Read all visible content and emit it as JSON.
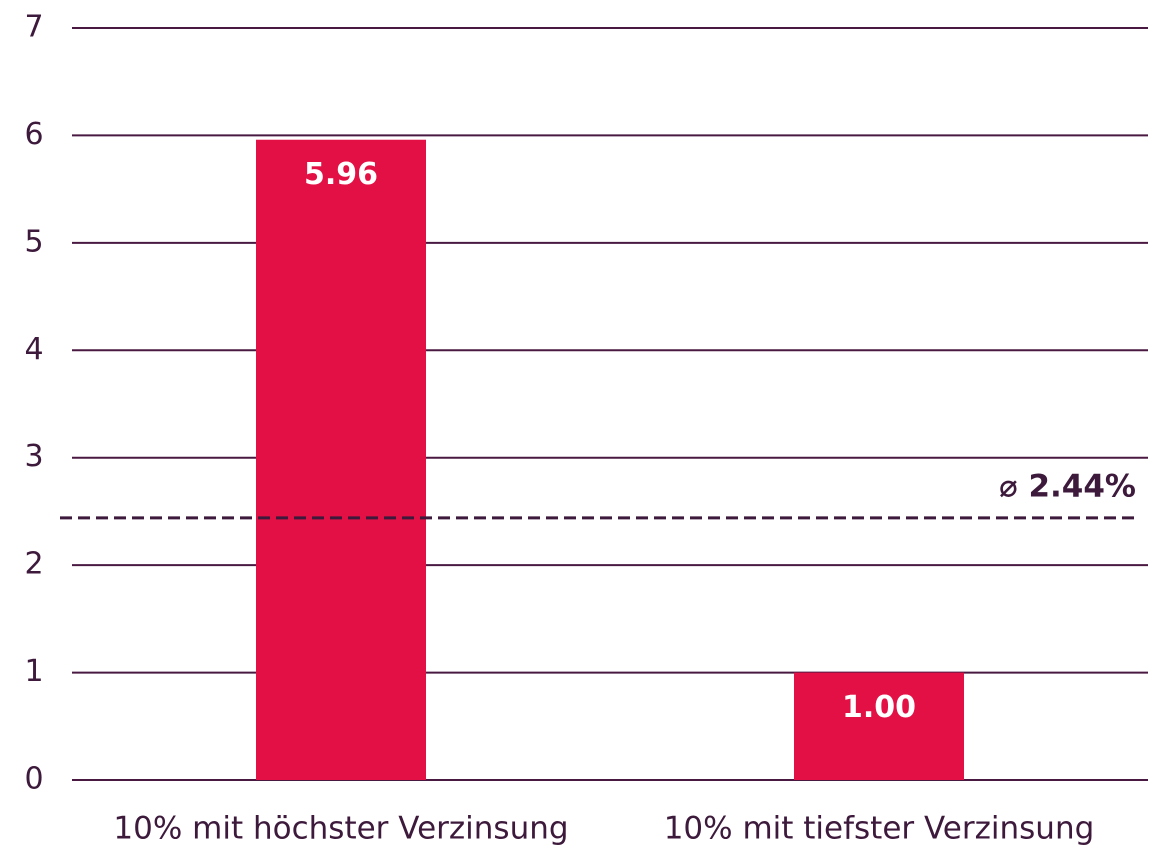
{
  "chart_data": {
    "type": "bar",
    "categories": [
      "10% mit höchster Verzinsung",
      "10% mit tiefster Verzinsung"
    ],
    "values": [
      5.96,
      1.0
    ],
    "value_labels": [
      "5.96",
      "1.00"
    ],
    "color": "#e31045",
    "ylim": [
      0,
      7
    ],
    "yticks": [
      0,
      1,
      2,
      3,
      4,
      5,
      6,
      7
    ],
    "grid": true,
    "reference_line": {
      "value": 2.44,
      "label": "⌀ 2.44%"
    }
  }
}
